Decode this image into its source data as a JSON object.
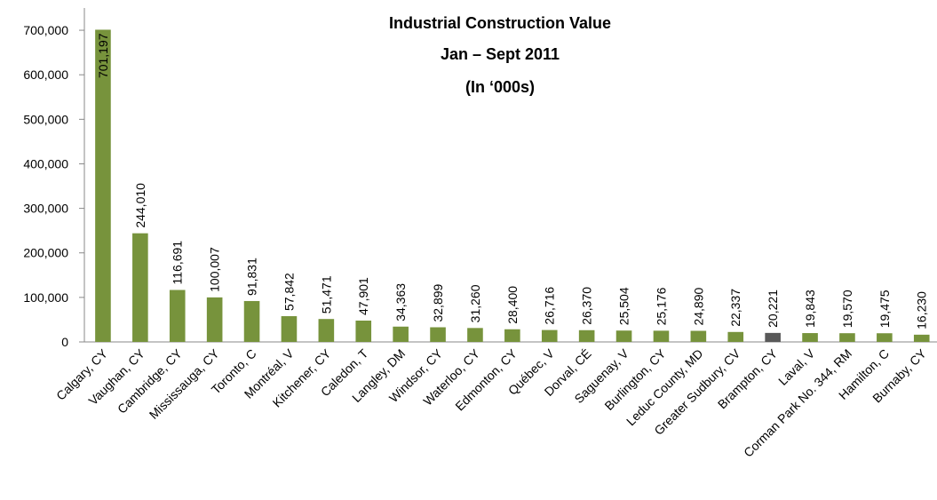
{
  "chart_data": {
    "type": "bar",
    "title": [
      "Industrial Construction Value",
      "Jan – Sept  2011",
      "(In ‘000s)"
    ],
    "categories": [
      "Calgary, CY",
      "Vaughan, CY",
      "Cambridge, CY",
      "Mississauga, CY",
      "Toronto, C",
      "Montréal, V",
      "Kitchener, CY",
      "Caledon, T",
      "Langley, DM",
      "Windsor, CY",
      "Waterloo, CY",
      "Edmonton, CY",
      "Québec, V",
      "Dorval, CÉ",
      "Saguenay, V",
      "Burlington, CY",
      "Leduc County, MD",
      "Greater Sudbury, CV",
      "Brampton, CY",
      "Laval, V",
      "Corman Park No. 344, RM",
      "Hamilton, C",
      "Burnaby, CY"
    ],
    "values": [
      701197,
      244010,
      116691,
      100007,
      91831,
      57842,
      51471,
      47901,
      34363,
      32899,
      31260,
      28400,
      26716,
      26370,
      25504,
      25176,
      24890,
      22337,
      20221,
      19843,
      19570,
      19475,
      16230
    ],
    "value_labels": [
      "701,197",
      "244,010",
      "116,691",
      "100,007",
      "91,831",
      "57,842",
      "51,471",
      "47,901",
      "34,363",
      "32,899",
      "31,260",
      "28,400",
      "26,716",
      "26,370",
      "25,504",
      "25,176",
      "24,890",
      "22,337",
      "20,221",
      "19,843",
      "19,570",
      "19,475",
      "16,230"
    ],
    "colors": [
      "#77933c",
      "#77933c",
      "#77933c",
      "#77933c",
      "#77933c",
      "#77933c",
      "#77933c",
      "#77933c",
      "#77933c",
      "#77933c",
      "#77933c",
      "#77933c",
      "#77933c",
      "#77933c",
      "#77933c",
      "#77933c",
      "#77933c",
      "#77933c",
      "#595959",
      "#77933c",
      "#77933c",
      "#77933c",
      "#77933c"
    ],
    "ylim": [
      0,
      750000
    ],
    "yticks": [
      0,
      {
        "value": 100000,
        "label": "100,000"
      },
      {
        "value": 200000,
        "label": "200,000"
      },
      {
        "value": 300000,
        "label": "300,000"
      },
      {
        "value": 400000,
        "label": "400,000"
      },
      {
        "value": 500000,
        "label": "500,000"
      },
      {
        "value": 600000,
        "label": "600,000"
      },
      {
        "value": 700000,
        "label": "700,000"
      }
    ],
    "grid": false
  }
}
